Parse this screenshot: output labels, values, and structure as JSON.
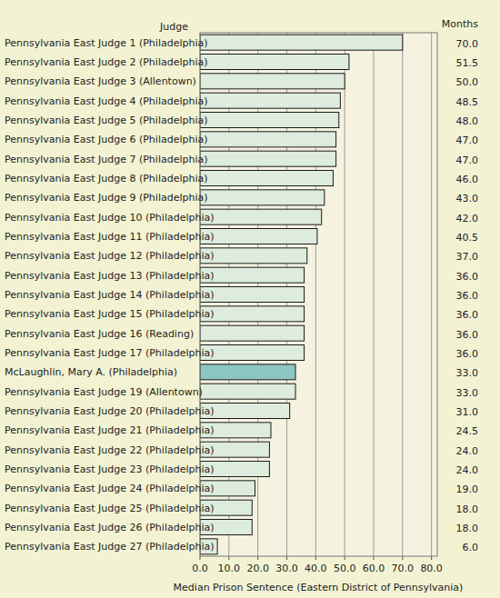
{
  "chart_data": {
    "type": "bar",
    "orientation": "horizontal",
    "ylabel": "Judge",
    "value_header": "Months",
    "xlabel": "Median Prison Sentence (Eastern District of Pennsylvania)",
    "categories": [
      "Pennsylvania East Judge 1 (Philadelphia)",
      "Pennsylvania East Judge 2 (Philadelphia)",
      "Pennsylvania East Judge 3 (Allentown)",
      "Pennsylvania East Judge 4 (Philadelphia)",
      "Pennsylvania East Judge 5 (Philadelphia)",
      "Pennsylvania East Judge 6 (Philadelphia)",
      "Pennsylvania East Judge 7 (Philadelphia)",
      "Pennsylvania East Judge 8 (Philadelphia)",
      "Pennsylvania East Judge 9 (Philadelphia)",
      "Pennsylvania East Judge 10 (Philadelphia)",
      "Pennsylvania East Judge 11 (Philadelphia)",
      "Pennsylvania East Judge 12 (Philadelphia)",
      "Pennsylvania East Judge 13 (Philadelphia)",
      "Pennsylvania East Judge 14 (Philadelphia)",
      "Pennsylvania East Judge 15 (Philadelphia)",
      "Pennsylvania East Judge 16 (Reading)",
      "Pennsylvania East Judge 17 (Philadelphia)",
      "McLaughlin, Mary A. (Philadelphia)",
      "Pennsylvania East Judge 19 (Allentown)",
      "Pennsylvania East Judge 20 (Philadelphia)",
      "Pennsylvania East Judge 21 (Philadelphia)",
      "Pennsylvania East Judge 22 (Philadelphia)",
      "Pennsylvania East Judge 23 (Philadelphia)",
      "Pennsylvania East Judge 24 (Philadelphia)",
      "Pennsylvania East Judge 25 (Philadelphia)",
      "Pennsylvania East Judge 26 (Philadelphia)",
      "Pennsylvania East Judge 27 (Philadelphia)"
    ],
    "values": [
      70.0,
      51.5,
      50.0,
      48.5,
      48.0,
      47.0,
      47.0,
      46.0,
      43.0,
      42.0,
      40.5,
      37.0,
      36.0,
      36.0,
      36.0,
      36.0,
      36.0,
      33.0,
      33.0,
      31.0,
      24.5,
      24.0,
      24.0,
      19.0,
      18.0,
      18.0,
      6.0
    ],
    "value_labels": [
      "70.0",
      "51.5",
      "50.0",
      "48.5",
      "48.0",
      "47.0",
      "47.0",
      "46.0",
      "43.0",
      "42.0",
      "40.5",
      "37.0",
      "36.0",
      "36.0",
      "36.0",
      "36.0",
      "36.0",
      "33.0",
      "33.0",
      "31.0",
      "24.5",
      "24.0",
      "24.0",
      "19.0",
      "18.0",
      "18.0",
      "6.0"
    ],
    "colors": [
      "#ddecdc",
      "#ddecdc",
      "#ddecdc",
      "#ddecdc",
      "#ddecdc",
      "#ddecdc",
      "#ddecdc",
      "#ddecdc",
      "#ddecdc",
      "#ddecdc",
      "#ddecdc",
      "#ddecdc",
      "#ddecdc",
      "#ddecdc",
      "#ddecdc",
      "#ddecdc",
      "#ddecdc",
      "#8cc5c2",
      "#ddecdc",
      "#ddecdc",
      "#ddecdc",
      "#ddecdc",
      "#ddecdc",
      "#ddecdc",
      "#ddecdc",
      "#ddecdc",
      "#ddecdc"
    ],
    "data_labels": true,
    "xlim": [
      0,
      82
    ],
    "xticks": [
      {
        "value": 0,
        "label": "0.0"
      },
      {
        "value": 10,
        "label": "10.0"
      },
      {
        "value": 20,
        "label": "20.0"
      },
      {
        "value": 30,
        "label": "30.0"
      },
      {
        "value": 40,
        "label": "40.0"
      },
      {
        "value": 50,
        "label": "50.0"
      },
      {
        "value": 60,
        "label": "60.0"
      },
      {
        "value": 70,
        "label": "70.0"
      },
      {
        "value": 80,
        "label": "80.0"
      }
    ],
    "grid": true
  }
}
